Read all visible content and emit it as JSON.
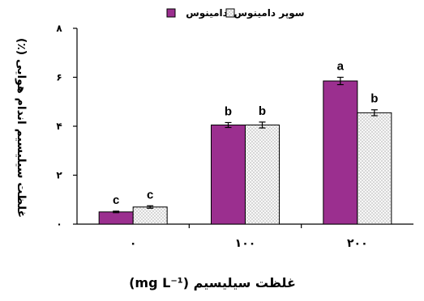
{
  "chart_data": {
    "type": "bar",
    "title": "",
    "xlabel": "غلظت سیلیسیم (mg L⁻¹)",
    "ylabel": "غلظت سیلیسیم اندام هوایی (٪)",
    "ylim": [
      0,
      8
    ],
    "yticks": [
      "۰",
      "۲",
      "۴",
      "۶",
      "۸"
    ],
    "ytick_values": [
      0,
      2,
      4,
      6,
      8
    ],
    "categories": [
      "۰",
      "۱۰۰",
      "۲۰۰"
    ],
    "series": [
      {
        "name": "دامینوس",
        "color": "#9b2f8f",
        "values": [
          0.5,
          4.05,
          5.85
        ],
        "errors": [
          0.03,
          0.1,
          0.15
        ],
        "significance": [
          "c",
          "b",
          "a"
        ]
      },
      {
        "name": "سوپر دامینوس",
        "color": "#f3f3f3",
        "values": [
          0.7,
          4.05,
          4.55
        ],
        "errors": [
          0.05,
          0.12,
          0.12
        ],
        "significance": [
          "c",
          "b",
          "b"
        ]
      }
    ],
    "legend_position": "top-center",
    "grid": false
  }
}
